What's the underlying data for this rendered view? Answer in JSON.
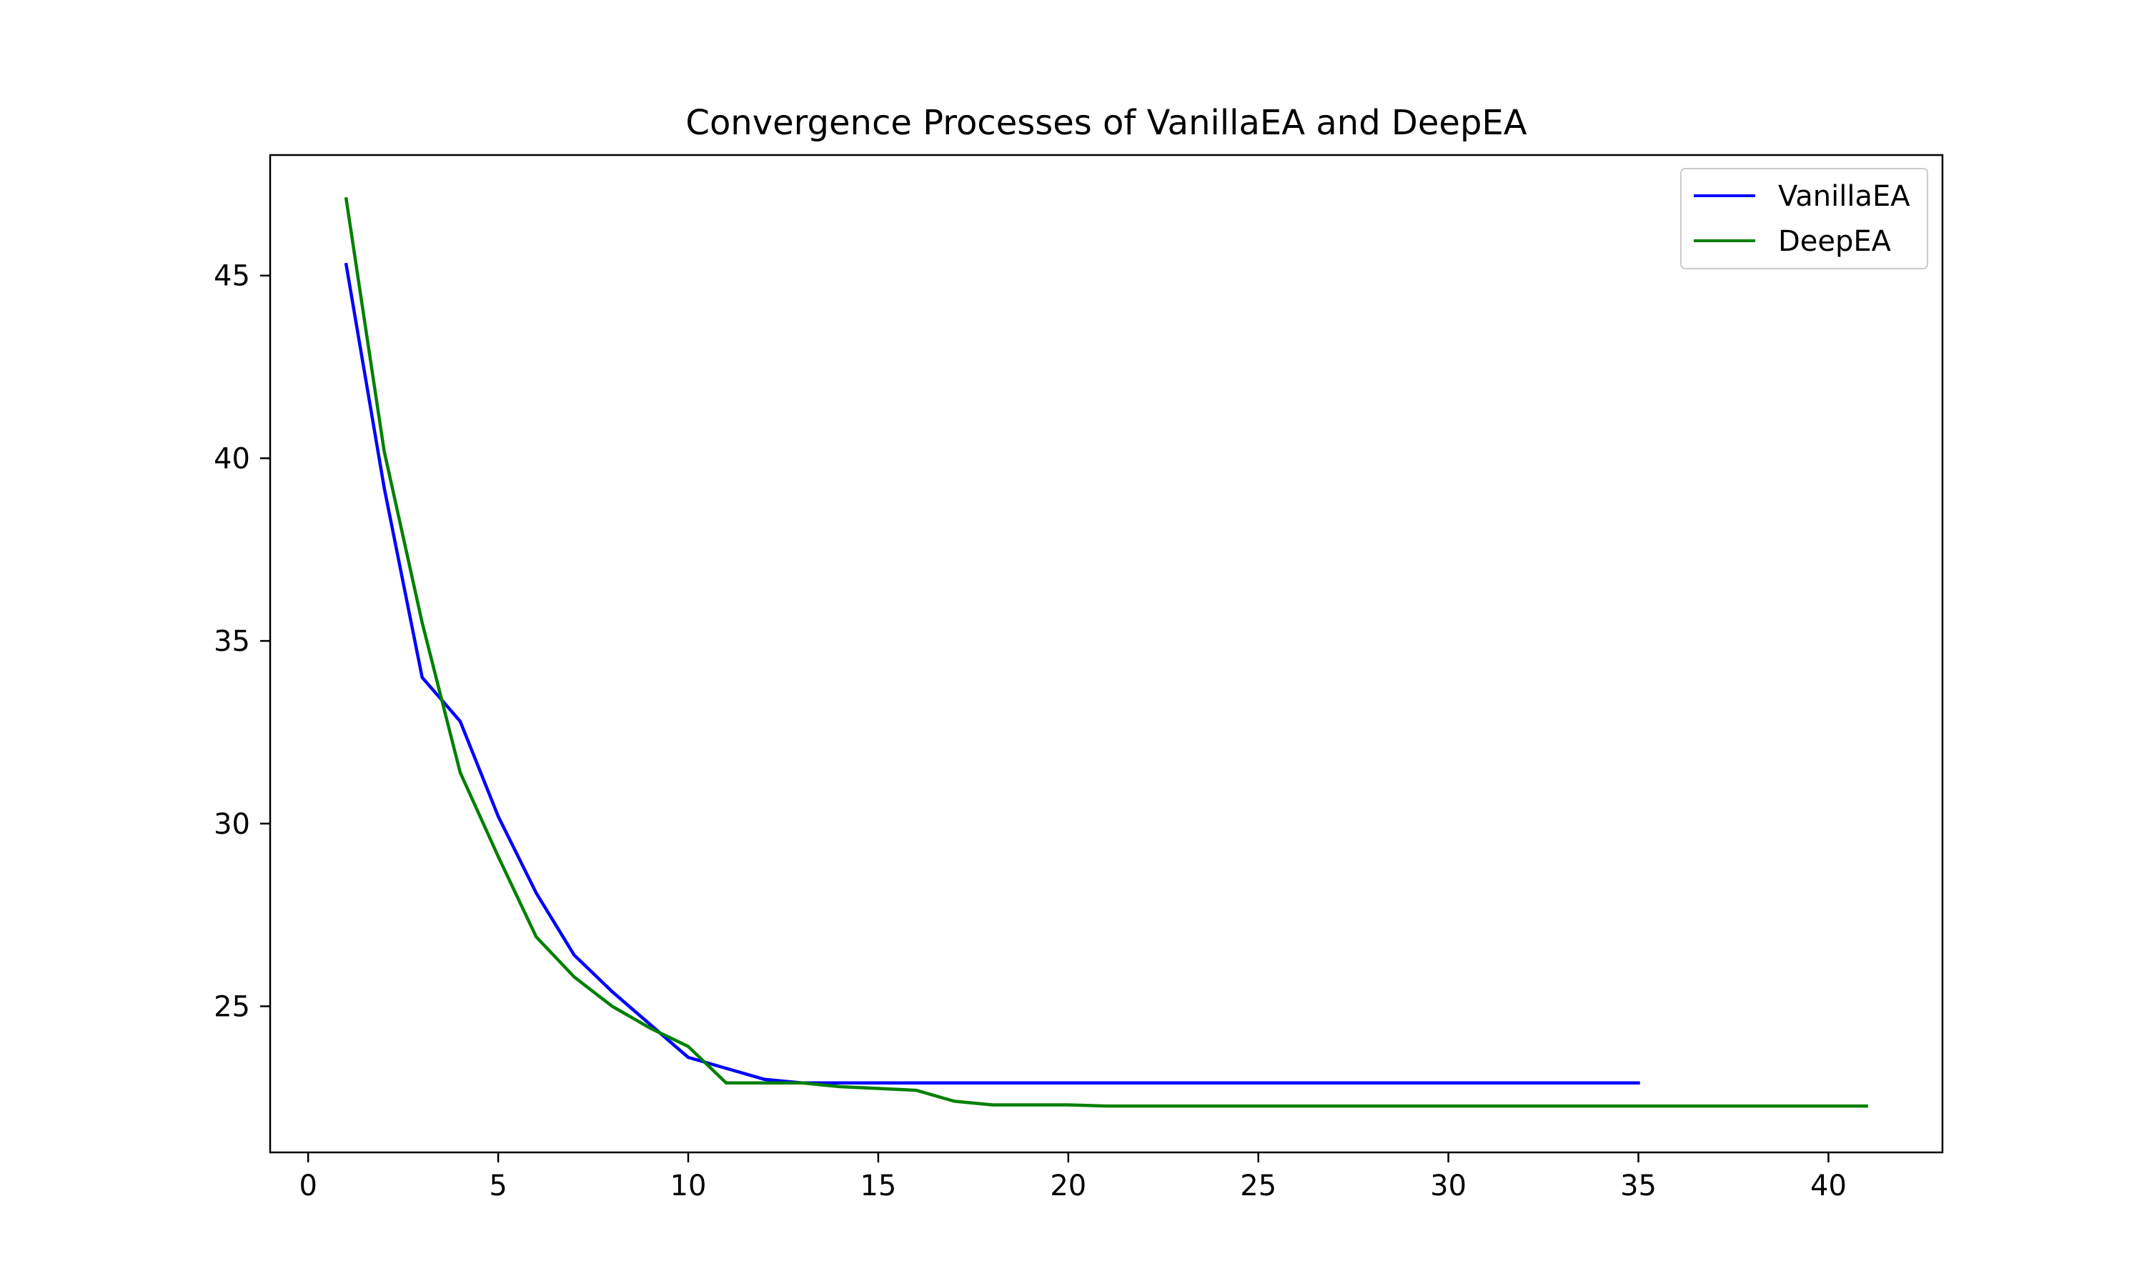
{
  "chart_data": {
    "type": "line",
    "title": "Convergence Processes of VanillaEA and DeepEA",
    "xlabel": "",
    "ylabel": "",
    "xlim": [
      -1,
      43
    ],
    "ylim": [
      21.0,
      48.3
    ],
    "xticks": [
      0,
      5,
      10,
      15,
      20,
      25,
      30,
      35,
      40
    ],
    "yticks": [
      25,
      30,
      35,
      40,
      45
    ],
    "grid": false,
    "legend_position": "top-right",
    "series": [
      {
        "name": "VanillaEA",
        "color": "#0000ff",
        "x": [
          1,
          2,
          3,
          4,
          5,
          6,
          7,
          8,
          9,
          10,
          11,
          12,
          13,
          14,
          15,
          16,
          17,
          18,
          19,
          20,
          21,
          22,
          23,
          24,
          25,
          26,
          27,
          28,
          29,
          30,
          31,
          32,
          33,
          34,
          35
        ],
        "y": [
          45.3,
          39.2,
          34.0,
          32.8,
          30.2,
          28.1,
          26.4,
          25.4,
          24.5,
          23.6,
          23.3,
          23.0,
          22.9,
          22.9,
          22.9,
          22.9,
          22.9,
          22.9,
          22.9,
          22.9,
          22.9,
          22.9,
          22.9,
          22.9,
          22.9,
          22.9,
          22.9,
          22.9,
          22.9,
          22.9,
          22.9,
          22.9,
          22.9,
          22.9,
          22.9
        ]
      },
      {
        "name": "DeepEA",
        "color": "#008000",
        "x": [
          1,
          2,
          3,
          4,
          5,
          6,
          7,
          8,
          9,
          10,
          11,
          12,
          13,
          14,
          15,
          16,
          17,
          18,
          19,
          20,
          21,
          22,
          23,
          24,
          25,
          26,
          27,
          28,
          29,
          30,
          31,
          32,
          33,
          34,
          35,
          36,
          37,
          38,
          39,
          40,
          41
        ],
        "y": [
          47.1,
          40.2,
          35.5,
          31.4,
          29.1,
          26.9,
          25.8,
          25.0,
          24.4,
          23.9,
          22.9,
          22.9,
          22.9,
          22.8,
          22.75,
          22.7,
          22.4,
          22.3,
          22.3,
          22.3,
          22.27,
          22.27,
          22.27,
          22.27,
          22.27,
          22.27,
          22.27,
          22.27,
          22.27,
          22.27,
          22.27,
          22.27,
          22.27,
          22.27,
          22.27,
          22.27,
          22.27,
          22.27,
          22.27,
          22.27,
          22.27
        ]
      }
    ]
  }
}
